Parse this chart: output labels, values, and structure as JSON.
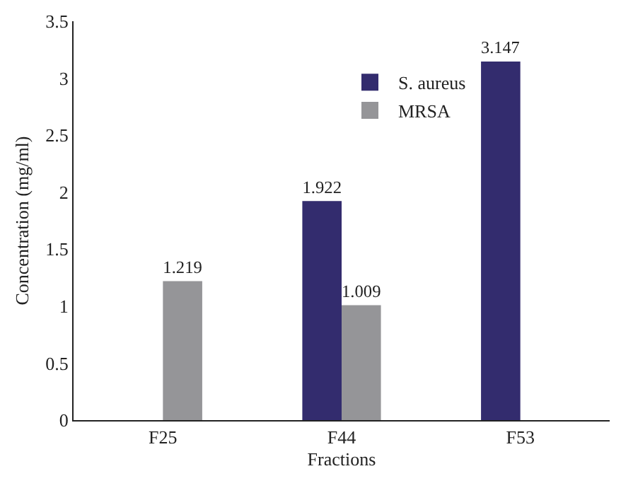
{
  "chart_data": {
    "type": "bar",
    "xlabel": "Fractions",
    "ylabel": "Concentration (mg/ml)",
    "categories": [
      "F25",
      "F44",
      "F53"
    ],
    "series": [
      {
        "name": "S. aureus",
        "color": "#332c6e",
        "values": [
          null,
          1.922,
          3.147
        ]
      },
      {
        "name": "MRSA",
        "color": "#959598",
        "values": [
          1.219,
          1.009,
          null
        ]
      }
    ],
    "ylim": [
      0,
      3.5
    ],
    "yticks": [
      0,
      0.5,
      1,
      1.5,
      2,
      2.5,
      3,
      3.5
    ],
    "data_labels": true,
    "grid": false,
    "legend": "top right"
  }
}
